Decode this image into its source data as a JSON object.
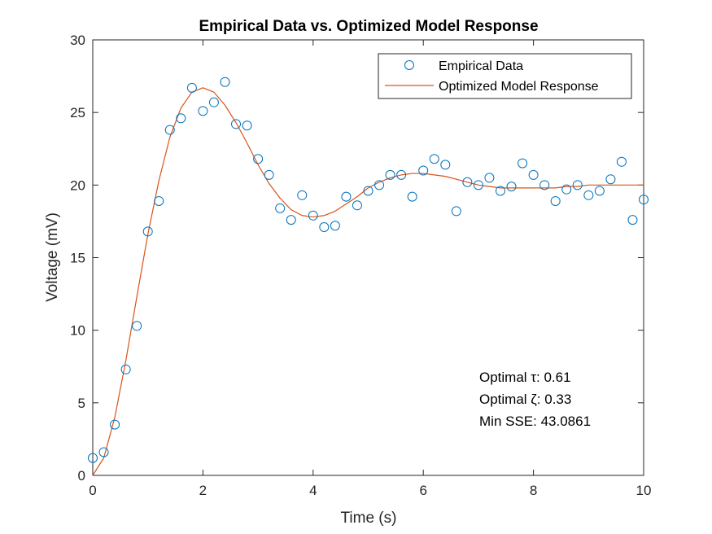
{
  "chart_data": {
    "type": "scatter",
    "title": "Empirical Data vs. Optimized Model Response",
    "xlabel": "Time (s)",
    "ylabel": "Voltage (mV)",
    "xlim": [
      0,
      10
    ],
    "ylim": [
      0,
      30
    ],
    "xticks": [
      "0",
      "2",
      "4",
      "6",
      "8",
      "10"
    ],
    "yticks": [
      "0",
      "5",
      "10",
      "15",
      "20",
      "25",
      "30"
    ],
    "grid": false,
    "legend_position": "top-right",
    "series": [
      {
        "name": "Empirical Data",
        "kind": "markers",
        "marker": "circle",
        "color": "#0072BD",
        "x": [
          0,
          0.2,
          0.4,
          0.6,
          0.8,
          1.0,
          1.2,
          1.4,
          1.6,
          1.8,
          2.0,
          2.2,
          2.4,
          2.6,
          2.8,
          3.0,
          3.2,
          3.4,
          3.6,
          3.8,
          4.0,
          4.2,
          4.4,
          4.6,
          4.8,
          5.0,
          5.2,
          5.4,
          5.6,
          5.8,
          6.0,
          6.2,
          6.4,
          6.6,
          6.8,
          7.0,
          7.2,
          7.4,
          7.6,
          7.8,
          8.0,
          8.2,
          8.4,
          8.6,
          8.8,
          9.0,
          9.2,
          9.4,
          9.6,
          9.8,
          10.0
        ],
        "y": [
          1.2,
          1.6,
          3.5,
          7.3,
          10.3,
          16.8,
          18.9,
          23.8,
          24.6,
          26.7,
          25.1,
          25.7,
          27.1,
          24.2,
          24.1,
          21.8,
          20.7,
          18.4,
          17.6,
          19.3,
          17.9,
          17.1,
          17.2,
          19.2,
          18.6,
          19.6,
          20.0,
          20.7,
          20.7,
          19.2,
          21.0,
          21.8,
          21.4,
          18.2,
          20.2,
          20.0,
          20.5,
          19.6,
          19.9,
          21.5,
          20.7,
          20.0,
          18.9,
          19.7,
          20.0,
          19.3,
          19.6,
          20.4,
          21.6,
          17.6,
          19.0
        ]
      },
      {
        "name": "Optimized Model Response",
        "kind": "line",
        "color": "#D95319",
        "x": [
          0,
          0.2,
          0.4,
          0.6,
          0.8,
          1.0,
          1.2,
          1.4,
          1.6,
          1.8,
          2.0,
          2.2,
          2.4,
          2.6,
          2.8,
          3.0,
          3.2,
          3.4,
          3.6,
          3.8,
          4.0,
          4.2,
          4.4,
          4.6,
          4.8,
          5.0,
          5.2,
          5.4,
          5.6,
          5.8,
          6.0,
          6.2,
          6.4,
          6.6,
          6.8,
          7.0,
          7.2,
          7.4,
          7.6,
          7.8,
          8.0,
          8.2,
          8.4,
          8.6,
          8.8,
          9.0,
          9.2,
          9.4,
          9.6,
          9.8,
          10.0
        ],
        "y": [
          0,
          1.2,
          4.0,
          7.9,
          12.3,
          16.6,
          20.3,
          23.3,
          25.3,
          26.4,
          26.7,
          26.4,
          25.5,
          24.3,
          22.9,
          21.4,
          20.1,
          19.1,
          18.3,
          17.9,
          17.8,
          17.9,
          18.2,
          18.7,
          19.2,
          19.8,
          20.2,
          20.5,
          20.7,
          20.8,
          20.8,
          20.7,
          20.6,
          20.4,
          20.2,
          20.0,
          19.9,
          19.8,
          19.8,
          19.8,
          19.8,
          19.8,
          19.8,
          19.9,
          19.9,
          20.0,
          20.0,
          20.0,
          20.0,
          20.0,
          20.0
        ]
      }
    ],
    "annotations": [
      "Optimal τ: 0.61",
      "Optimal ζ: 0.33",
      "Min SSE: 43.0861"
    ]
  }
}
